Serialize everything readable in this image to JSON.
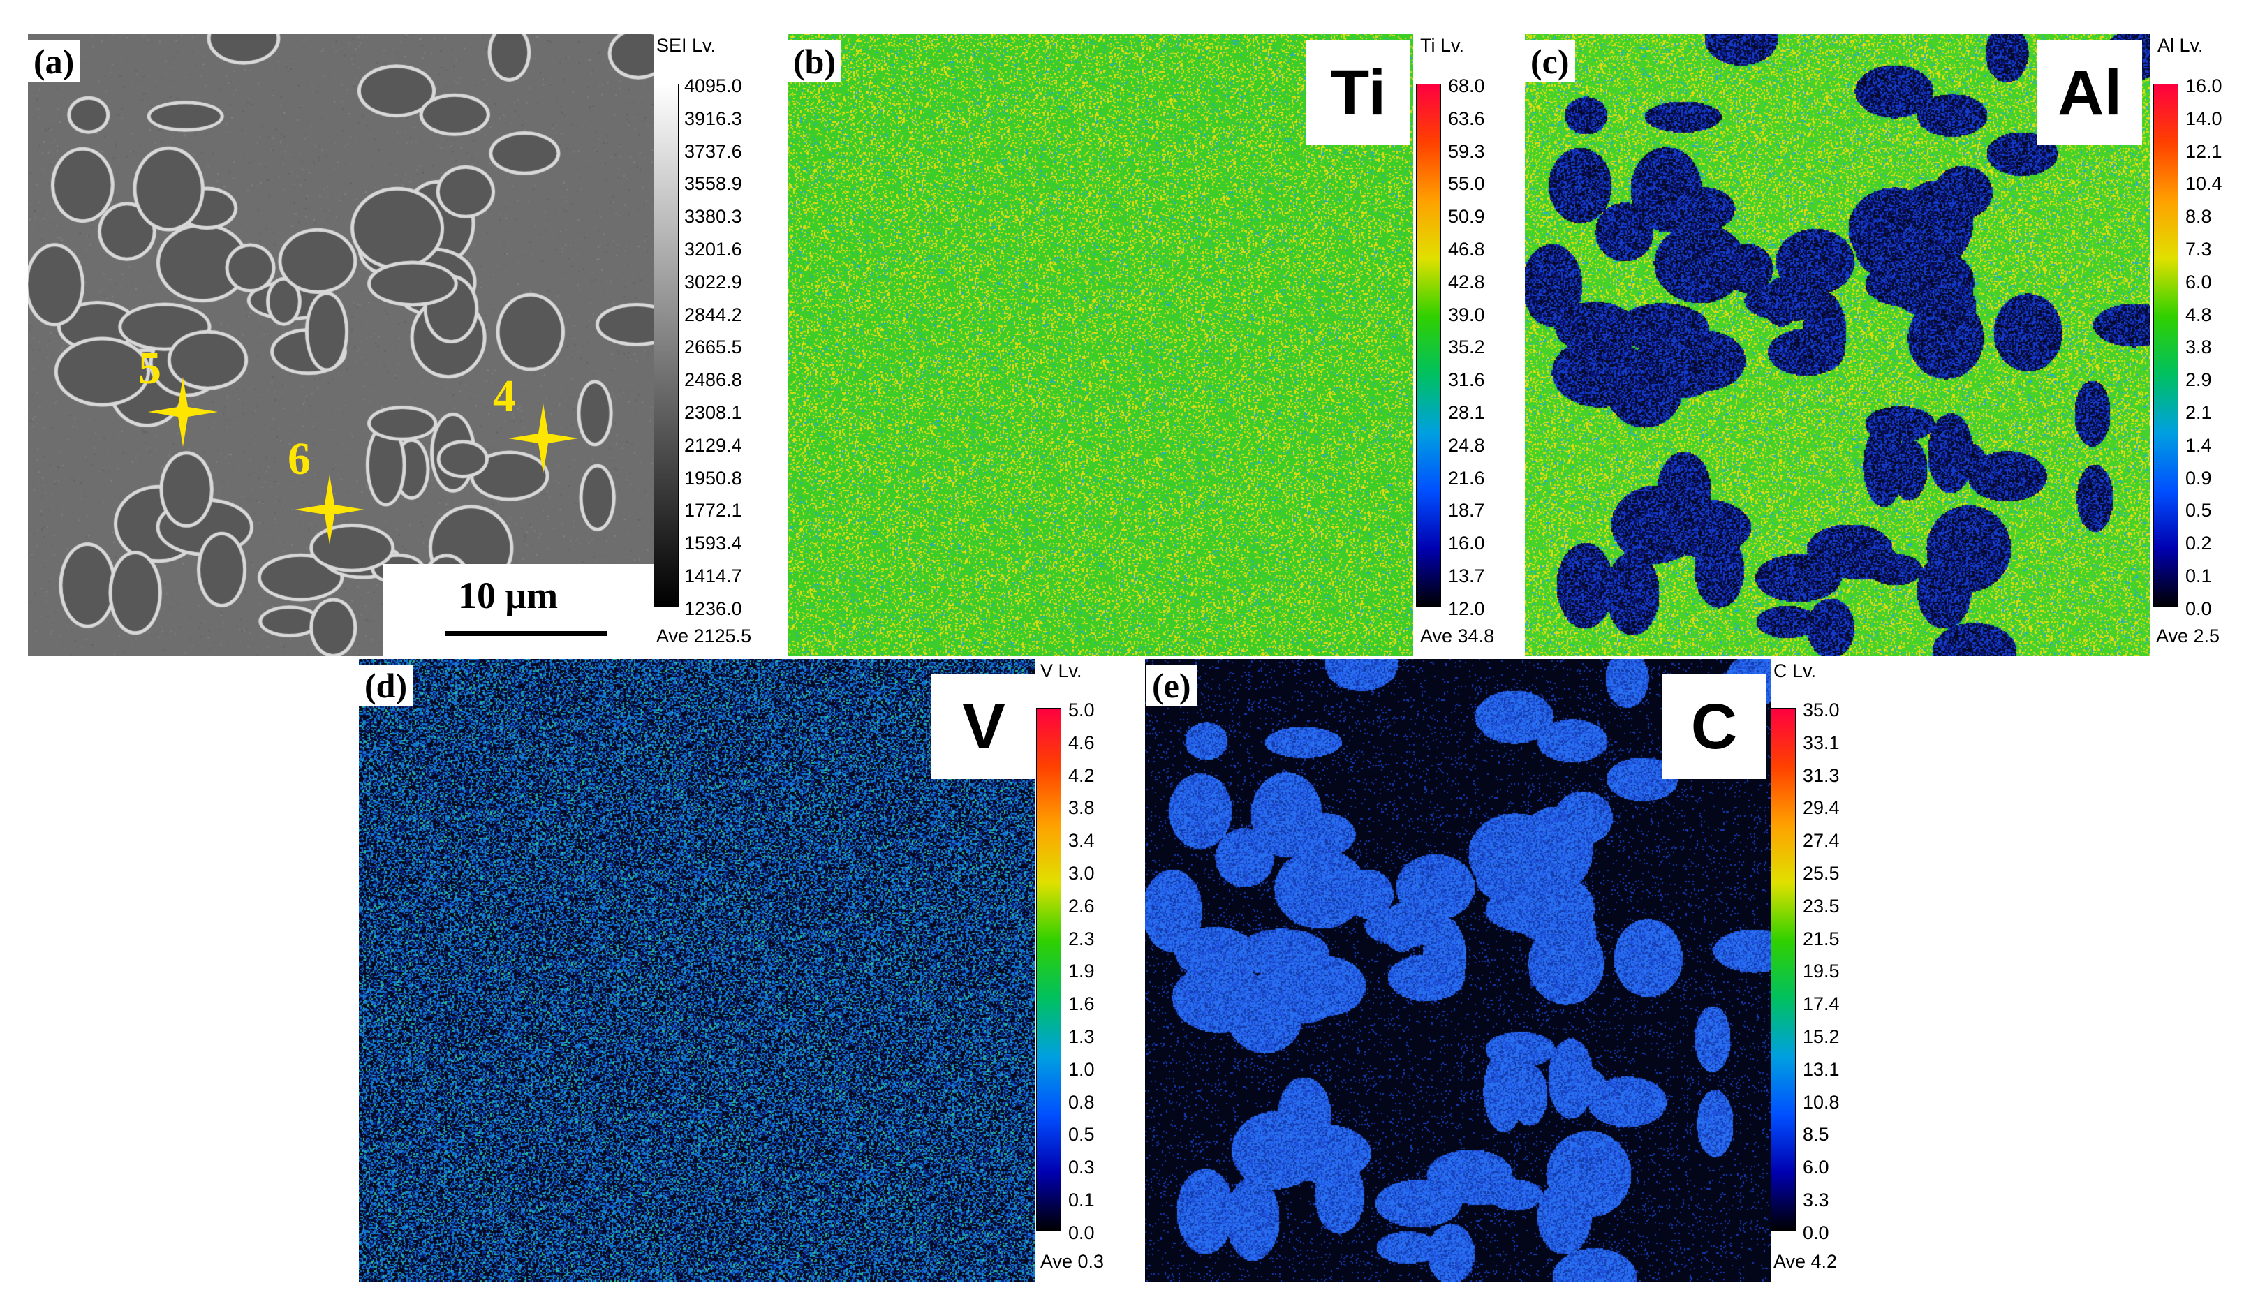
{
  "panels": {
    "a": {
      "tag": "(a)",
      "level_title": "SEI Lv.",
      "ticks": [
        "4095.0",
        "3916.3",
        "3737.6",
        "3558.9",
        "3380.3",
        "3201.6",
        "3022.9",
        "2844.2",
        "2665.5",
        "2486.8",
        "2308.1",
        "2129.4",
        "1950.8",
        "1772.1",
        "1593.4",
        "1414.7",
        "1236.0"
      ],
      "average": "Ave 2125.5",
      "scale_bar": "10 μm",
      "markers": [
        "5",
        "4",
        "6"
      ]
    },
    "b": {
      "tag": "(b)",
      "element": "Ti",
      "level_title": "Ti Lv.",
      "ticks": [
        "68.0",
        "63.6",
        "59.3",
        "55.0",
        "50.9",
        "46.8",
        "42.8",
        "39.0",
        "35.2",
        "31.6",
        "28.1",
        "24.8",
        "21.6",
        "18.7",
        "16.0",
        "13.7",
        "12.0"
      ],
      "average": "Ave 34.8"
    },
    "c": {
      "tag": "(c)",
      "element": "Al",
      "level_title": "Al Lv.",
      "ticks": [
        "16.0",
        "14.0",
        "12.1",
        "10.4",
        "8.8",
        "7.3",
        "6.0",
        "4.8",
        "3.8",
        "2.9",
        "2.1",
        "1.4",
        "0.9",
        "0.5",
        "0.2",
        "0.1",
        "0.0"
      ],
      "average": "Ave 2.5"
    },
    "d": {
      "tag": "(d)",
      "element": "V",
      "level_title": "V Lv.",
      "ticks": [
        "5.0",
        "4.6",
        "4.2",
        "3.8",
        "3.4",
        "3.0",
        "2.6",
        "2.3",
        "1.9",
        "1.6",
        "1.3",
        "1.0",
        "0.8",
        "0.5",
        "0.3",
        "0.1",
        "0.0"
      ],
      "average": "Ave 0.3"
    },
    "e": {
      "tag": "(e)",
      "element": "C",
      "level_title": "C Lv.",
      "ticks": [
        "35.0",
        "33.1",
        "31.3",
        "29.4",
        "27.4",
        "25.5",
        "23.5",
        "21.5",
        "19.5",
        "17.4",
        "15.2",
        "13.1",
        "10.8",
        "8.5",
        "6.0",
        "3.3",
        "0.0"
      ],
      "average": "Ave 4.2"
    }
  },
  "colors": {
    "marker": "#ffe600",
    "phase_map_bg": "#000000"
  }
}
